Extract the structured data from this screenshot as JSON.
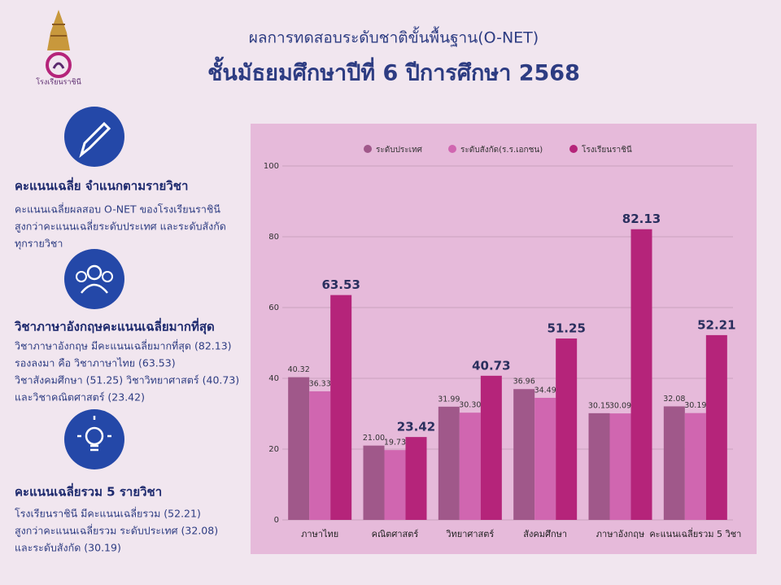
{
  "logo": {
    "caption": "โรงเรียนราชินี"
  },
  "header": {
    "subtitle": "ผลการทดสอบระดับชาติขั้นพื้นฐาน(O-NET)",
    "title": "ชั้นมัธยมศึกษาปีที่ 6 ปีการศึกษา 2568"
  },
  "sections": [
    {
      "heading": "คะแนนเฉลี่ย จำแนกตามรายวิชา",
      "lines": [
        "คะแนนเฉลี่ยผลสอบ O-NET ของโรงเรียนราชินี",
        "สูงกว่าคะแนนเฉลี่ยระดับประเทศ และระดับสังกัด",
        "ทุกรายวิชา"
      ]
    },
    {
      "heading": "วิชาภาษาอังกฤษคะแนนเฉลี่ยมากที่สุด",
      "lines": [
        "วิชาภาษาอังกฤษ มีคะแนนเฉลี่ยมากที่สุด (82.13)",
        "รองลงมา คือ วิชาภาษาไทย (63.53)",
        "วิชาสังคมศึกษา (51.25) วิชาวิทยาศาสตร์ (40.73)",
        "และวิชาคณิตศาสตร์ (23.42)"
      ]
    },
    {
      "heading": "คะแนนเฉลี่ยรวม 5 รายวิชา",
      "lines": [
        "โรงเรียนราชินี มีคะแนนเฉลี่ยรวม (52.21)",
        "สูงกว่าคะแนนเฉลี่ยรวม ระดับประเทศ (32.08)",
        "และระดับสังกัด (30.19)"
      ]
    }
  ],
  "chart_data": {
    "type": "bar",
    "categories": [
      "ภาษาไทย",
      "คณิตศาสตร์",
      "วิทยาศาสตร์",
      "สังคมศึกษา",
      "ภาษาอังกฤษ",
      "คะแนนเฉลี่ยรวม 5 วิชา"
    ],
    "series": [
      {
        "name": "ระดับประเทศ",
        "color": "#a0588a",
        "values": [
          40.32,
          21.0,
          31.99,
          36.96,
          30.15,
          32.08
        ],
        "value_labels": [
          "40.32",
          "21.00",
          "31.99",
          "36.96",
          "30.15",
          "32.08"
        ]
      },
      {
        "name": "ระดับสังกัด(ร.ร.เอกชน)",
        "color": "#d066b0",
        "values": [
          36.33,
          19.73,
          30.3,
          34.49,
          30.09,
          30.19
        ],
        "value_labels": [
          "36.33",
          "19.73",
          "30.30",
          "34.49",
          "30.09",
          "30.19"
        ]
      },
      {
        "name": "โรงเรียนราชินี",
        "color": "#b5247a",
        "values": [
          63.53,
          23.42,
          40.73,
          51.25,
          82.13,
          52.21
        ],
        "value_labels": [
          "63.53",
          "23.42",
          "40.73",
          "51.25",
          "82.13",
          "52.21"
        ]
      }
    ],
    "ylim": [
      0,
      100
    ],
    "yticks": [
      0,
      20,
      40,
      60,
      80,
      100
    ],
    "grid": true,
    "legend": "top"
  }
}
